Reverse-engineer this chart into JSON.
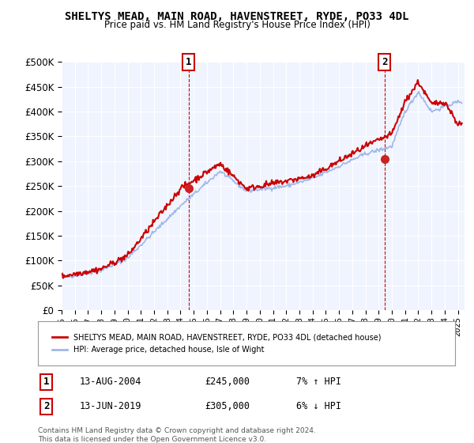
{
  "title": "SHELTYS MEAD, MAIN ROAD, HAVENSTREET, RYDE, PO33 4DL",
  "subtitle": "Price paid vs. HM Land Registry's House Price Index (HPI)",
  "ylabel_ticks": [
    "£0",
    "£50K",
    "£100K",
    "£150K",
    "£200K",
    "£250K",
    "£300K",
    "£350K",
    "£400K",
    "£450K",
    "£500K"
  ],
  "ylim": [
    0,
    500000
  ],
  "xlim_start": 1995.0,
  "xlim_end": 2025.5,
  "background_color": "#ffffff",
  "plot_bg_color": "#f0f4ff",
  "grid_color": "#ffffff",
  "line_color_hpi": "#a0b8e8",
  "line_color_price": "#cc0000",
  "marker1_x": 2004.617,
  "marker1_y": 245000,
  "marker2_x": 2019.45,
  "marker2_y": 305000,
  "marker1_label": "1",
  "marker2_label": "2",
  "legend_price_label": "SHELTYS MEAD, MAIN ROAD, HAVENSTREET, RYDE, PO33 4DL (detached house)",
  "legend_hpi_label": "HPI: Average price, detached house, Isle of Wight",
  "table_row1": [
    "1",
    "13-AUG-2004",
    "£245,000",
    "7% ↑ HPI"
  ],
  "table_row2": [
    "2",
    "13-JUN-2019",
    "£305,000",
    "6% ↓ HPI"
  ],
  "footnote": "Contains HM Land Registry data © Crown copyright and database right 2024.\nThis data is licensed under the Open Government Licence v3.0.",
  "x_ticks": [
    1995,
    1996,
    1997,
    1998,
    1999,
    2000,
    2001,
    2002,
    2003,
    2004,
    2005,
    2006,
    2007,
    2008,
    2009,
    2010,
    2011,
    2012,
    2013,
    2014,
    2015,
    2016,
    2017,
    2018,
    2019,
    2020,
    2021,
    2022,
    2023,
    2024,
    2025
  ]
}
